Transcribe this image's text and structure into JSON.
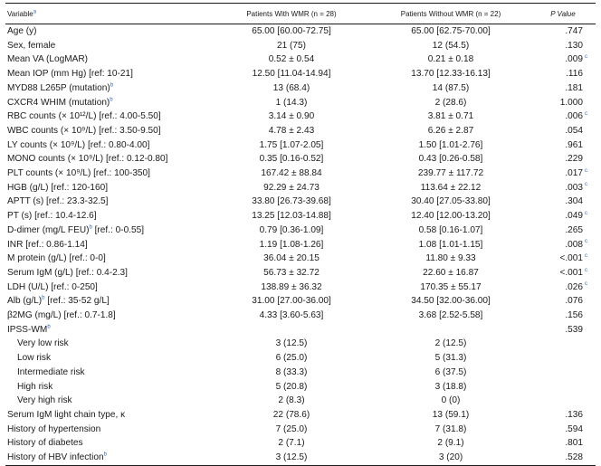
{
  "header": {
    "variable": "Variable",
    "variable_sup": "a",
    "with_wmr": "Patients With WMR (n = 28)",
    "without_wmr": "Patients Without WMR (n = 22)",
    "pvalue": "P Value"
  },
  "rows": [
    {
      "label": "Age (y)",
      "sup": "",
      "with": "65.00 [60.00-72.75]",
      "without": "65.00 [62.75-70.00]",
      "p": ".747",
      "p_sup": "",
      "indent": false
    },
    {
      "label": "Sex, female",
      "sup": "",
      "with": "21 (75)",
      "without": "12 (54.5)",
      "p": ".130",
      "p_sup": "",
      "indent": false
    },
    {
      "label": "Mean VA (LogMAR)",
      "sup": "",
      "with": "0.52 ± 0.54",
      "without": "0.21 ± 0.18",
      "p": ".009",
      "p_sup": "c",
      "indent": false
    },
    {
      "label": "Mean IOP (mm Hg) [ref: 10-21]",
      "sup": "",
      "with": "12.50 [11.04-14.94]",
      "without": "13.70 [12.33-16.13]",
      "p": ".116",
      "p_sup": "",
      "indent": false
    },
    {
      "label": "MYD88 L265P (mutation)",
      "sup": "b",
      "with": "13 (68.4)",
      "without": "14 (87.5)",
      "p": ".181",
      "p_sup": "",
      "indent": false
    },
    {
      "label": "CXCR4 WHIM (mutation)",
      "sup": "b",
      "with": "1 (14.3)",
      "without": "2 (28.6)",
      "p": "1.000",
      "p_sup": "",
      "indent": false
    },
    {
      "label": "RBC counts (× 10¹²/L) [ref.: 4.00-5.50]",
      "sup": "",
      "with": "3.14 ± 0.90",
      "without": "3.81 ± 0.71",
      "p": ".006",
      "p_sup": "c",
      "indent": false
    },
    {
      "label": "WBC counts (× 10⁹/L) [ref.: 3.50-9.50]",
      "sup": "",
      "with": "4.78 ± 2.43",
      "without": "6.26 ± 2.87",
      "p": ".054",
      "p_sup": "",
      "indent": false
    },
    {
      "label": "LY counts (× 10⁹/L) [ref.: 0.80-4.00]",
      "sup": "",
      "with": "1.75 [1.07-2.05]",
      "without": "1.50 [1.01-2.76]",
      "p": ".961",
      "p_sup": "",
      "indent": false
    },
    {
      "label": "MONO counts (× 10⁹/L) [ref.: 0.12-0.80]",
      "sup": "",
      "with": "0.35 [0.16-0.52]",
      "without": "0.43 [0.26-0.58]",
      "p": ".229",
      "p_sup": "",
      "indent": false
    },
    {
      "label": "PLT counts (× 10⁹/L) [ref.: 100-350]",
      "sup": "",
      "with": "167.42 ± 88.84",
      "without": "239.77 ± 117.72",
      "p": ".017",
      "p_sup": "c",
      "indent": false
    },
    {
      "label": "HGB (g/L) [ref.: 120-160]",
      "sup": "",
      "with": "92.29 ± 24.73",
      "without": "113.64 ± 22.12",
      "p": ".003",
      "p_sup": "c",
      "indent": false
    },
    {
      "label": "APTT (s) [ref.: 23.3-32.5]",
      "sup": "",
      "with": "33.80 [26.73-39.68]",
      "without": "30.40 [27.05-33.80]",
      "p": ".304",
      "p_sup": "",
      "indent": false
    },
    {
      "label": "PT (s) [ref.: 10.4-12.6]",
      "sup": "",
      "with": "13.25 [12.03-14.88]",
      "without": "12.40 [12.00-13.20]",
      "p": ".049",
      "p_sup": "c",
      "indent": false
    },
    {
      "label": "D-dimer (mg/L FEU)",
      "sup": "b",
      "label_after": " [ref.: 0-0.55]",
      "with": "0.79 [0.36-1.09]",
      "without": "0.58 [0.16-1.07]",
      "p": ".265",
      "p_sup": "",
      "indent": false
    },
    {
      "label": "INR [ref.: 0.86-1.14]",
      "sup": "",
      "with": "1.19 [1.08-1.26]",
      "without": "1.08 [1.01-1.15]",
      "p": ".008",
      "p_sup": "c",
      "indent": false
    },
    {
      "label": "M protein (g/L) [ref.: 0-0]",
      "sup": "",
      "with": "36.04 ± 20.15",
      "without": "11.80 ± 9.33",
      "p": "<.001",
      "p_sup": "c",
      "indent": false
    },
    {
      "label": "Serum IgM (g/L) [ref.: 0.4-2.3]",
      "sup": "",
      "with": "56.73 ± 32.72",
      "without": "22.60 ± 16.87",
      "p": "<.001",
      "p_sup": "c",
      "indent": false
    },
    {
      "label": "LDH (U/L) [ref.: 0-250]",
      "sup": "",
      "with": "138.89 ± 36.32",
      "without": "170.35 ± 55.17",
      "p": ".026",
      "p_sup": "c",
      "indent": false
    },
    {
      "label": "Alb (g/L)",
      "sup": "b",
      "label_after": " [ref.: 35-52 g/L]",
      "with": "31.00 [27.00-36.00]",
      "without": "34.50 [32.00-36.00]",
      "p": ".076",
      "p_sup": "",
      "indent": false
    },
    {
      "label": "β2MG (mg/L) [ref.: 0.7-1.8]",
      "sup": "",
      "with": "4.33 [3.60-5.63]",
      "without": "3.68 [2.52-5.58]",
      "p": ".156",
      "p_sup": "",
      "indent": false
    },
    {
      "label": "IPSS-WM",
      "sup": "b",
      "with": "",
      "without": "",
      "p": ".539",
      "p_sup": "",
      "indent": false
    },
    {
      "label": "Very low risk",
      "sup": "",
      "with": "3 (12.5)",
      "without": "2 (12.5)",
      "p": "",
      "p_sup": "",
      "indent": true
    },
    {
      "label": "Low risk",
      "sup": "",
      "with": "6 (25.0)",
      "without": "5 (31.3)",
      "p": "",
      "p_sup": "",
      "indent": true
    },
    {
      "label": "Intermediate risk",
      "sup": "",
      "with": "8 (33.3)",
      "without": "6 (37.5)",
      "p": "",
      "p_sup": "",
      "indent": true
    },
    {
      "label": "High risk",
      "sup": "",
      "with": "5 (20.8)",
      "without": "3 (18.8)",
      "p": "",
      "p_sup": "",
      "indent": true
    },
    {
      "label": "Very high risk",
      "sup": "",
      "with": "2 (8.3)",
      "without": "0 (0)",
      "p": "",
      "p_sup": "",
      "indent": true
    },
    {
      "label": "Serum IgM light chain type, κ",
      "sup": "",
      "with": "22 (78.6)",
      "without": "13 (59.1)",
      "p": ".136",
      "p_sup": "",
      "indent": false
    },
    {
      "label": "History of hypertension",
      "sup": "",
      "with": "7 (25.0)",
      "without": "7 (31.8)",
      "p": ".594",
      "p_sup": "",
      "indent": false
    },
    {
      "label": "History of diabetes",
      "sup": "",
      "with": "2 (7.1)",
      "without": "2 (9.1)",
      "p": ".801",
      "p_sup": "",
      "indent": false
    },
    {
      "label": "History of HBV infection",
      "sup": "b",
      "with": "3 (12.5)",
      "without": "3 (20)",
      "p": ".528",
      "p_sup": "",
      "indent": false
    }
  ],
  "colors": {
    "footnote_marker": "#2b6bbf",
    "rule": "#1a1a1a",
    "text": "#1a1a1a"
  }
}
